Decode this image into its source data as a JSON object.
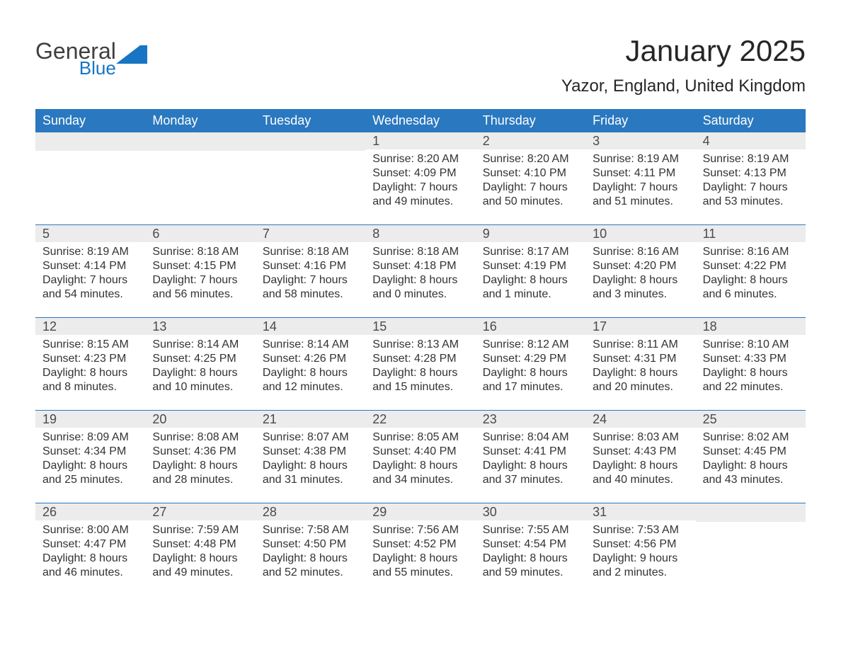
{
  "logo": {
    "word1": "General",
    "word2": "Blue"
  },
  "title": "January 2025",
  "location": "Yazor, England, United Kingdom",
  "colors": {
    "header_bg": "#2a78bf",
    "header_text": "#ffffff",
    "daynum_bg": "#ececec",
    "text": "#333333",
    "logo_gray": "#3f3f3f",
    "logo_blue": "#1775c4",
    "page_bg": "#ffffff"
  },
  "day_names": [
    "Sunday",
    "Monday",
    "Tuesday",
    "Wednesday",
    "Thursday",
    "Friday",
    "Saturday"
  ],
  "weeks": [
    [
      {
        "n": "",
        "sr": "",
        "ss": "",
        "dl": ""
      },
      {
        "n": "",
        "sr": "",
        "ss": "",
        "dl": ""
      },
      {
        "n": "",
        "sr": "",
        "ss": "",
        "dl": ""
      },
      {
        "n": "1",
        "sr": "Sunrise: 8:20 AM",
        "ss": "Sunset: 4:09 PM",
        "dl": "Daylight: 7 hours and 49 minutes."
      },
      {
        "n": "2",
        "sr": "Sunrise: 8:20 AM",
        "ss": "Sunset: 4:10 PM",
        "dl": "Daylight: 7 hours and 50 minutes."
      },
      {
        "n": "3",
        "sr": "Sunrise: 8:19 AM",
        "ss": "Sunset: 4:11 PM",
        "dl": "Daylight: 7 hours and 51 minutes."
      },
      {
        "n": "4",
        "sr": "Sunrise: 8:19 AM",
        "ss": "Sunset: 4:13 PM",
        "dl": "Daylight: 7 hours and 53 minutes."
      }
    ],
    [
      {
        "n": "5",
        "sr": "Sunrise: 8:19 AM",
        "ss": "Sunset: 4:14 PM",
        "dl": "Daylight: 7 hours and 54 minutes."
      },
      {
        "n": "6",
        "sr": "Sunrise: 8:18 AM",
        "ss": "Sunset: 4:15 PM",
        "dl": "Daylight: 7 hours and 56 minutes."
      },
      {
        "n": "7",
        "sr": "Sunrise: 8:18 AM",
        "ss": "Sunset: 4:16 PM",
        "dl": "Daylight: 7 hours and 58 minutes."
      },
      {
        "n": "8",
        "sr": "Sunrise: 8:18 AM",
        "ss": "Sunset: 4:18 PM",
        "dl": "Daylight: 8 hours and 0 minutes."
      },
      {
        "n": "9",
        "sr": "Sunrise: 8:17 AM",
        "ss": "Sunset: 4:19 PM",
        "dl": "Daylight: 8 hours and 1 minute."
      },
      {
        "n": "10",
        "sr": "Sunrise: 8:16 AM",
        "ss": "Sunset: 4:20 PM",
        "dl": "Daylight: 8 hours and 3 minutes."
      },
      {
        "n": "11",
        "sr": "Sunrise: 8:16 AM",
        "ss": "Sunset: 4:22 PM",
        "dl": "Daylight: 8 hours and 6 minutes."
      }
    ],
    [
      {
        "n": "12",
        "sr": "Sunrise: 8:15 AM",
        "ss": "Sunset: 4:23 PM",
        "dl": "Daylight: 8 hours and 8 minutes."
      },
      {
        "n": "13",
        "sr": "Sunrise: 8:14 AM",
        "ss": "Sunset: 4:25 PM",
        "dl": "Daylight: 8 hours and 10 minutes."
      },
      {
        "n": "14",
        "sr": "Sunrise: 8:14 AM",
        "ss": "Sunset: 4:26 PM",
        "dl": "Daylight: 8 hours and 12 minutes."
      },
      {
        "n": "15",
        "sr": "Sunrise: 8:13 AM",
        "ss": "Sunset: 4:28 PM",
        "dl": "Daylight: 8 hours and 15 minutes."
      },
      {
        "n": "16",
        "sr": "Sunrise: 8:12 AM",
        "ss": "Sunset: 4:29 PM",
        "dl": "Daylight: 8 hours and 17 minutes."
      },
      {
        "n": "17",
        "sr": "Sunrise: 8:11 AM",
        "ss": "Sunset: 4:31 PM",
        "dl": "Daylight: 8 hours and 20 minutes."
      },
      {
        "n": "18",
        "sr": "Sunrise: 8:10 AM",
        "ss": "Sunset: 4:33 PM",
        "dl": "Daylight: 8 hours and 22 minutes."
      }
    ],
    [
      {
        "n": "19",
        "sr": "Sunrise: 8:09 AM",
        "ss": "Sunset: 4:34 PM",
        "dl": "Daylight: 8 hours and 25 minutes."
      },
      {
        "n": "20",
        "sr": "Sunrise: 8:08 AM",
        "ss": "Sunset: 4:36 PM",
        "dl": "Daylight: 8 hours and 28 minutes."
      },
      {
        "n": "21",
        "sr": "Sunrise: 8:07 AM",
        "ss": "Sunset: 4:38 PM",
        "dl": "Daylight: 8 hours and 31 minutes."
      },
      {
        "n": "22",
        "sr": "Sunrise: 8:05 AM",
        "ss": "Sunset: 4:40 PM",
        "dl": "Daylight: 8 hours and 34 minutes."
      },
      {
        "n": "23",
        "sr": "Sunrise: 8:04 AM",
        "ss": "Sunset: 4:41 PM",
        "dl": "Daylight: 8 hours and 37 minutes."
      },
      {
        "n": "24",
        "sr": "Sunrise: 8:03 AM",
        "ss": "Sunset: 4:43 PM",
        "dl": "Daylight: 8 hours and 40 minutes."
      },
      {
        "n": "25",
        "sr": "Sunrise: 8:02 AM",
        "ss": "Sunset: 4:45 PM",
        "dl": "Daylight: 8 hours and 43 minutes."
      }
    ],
    [
      {
        "n": "26",
        "sr": "Sunrise: 8:00 AM",
        "ss": "Sunset: 4:47 PM",
        "dl": "Daylight: 8 hours and 46 minutes."
      },
      {
        "n": "27",
        "sr": "Sunrise: 7:59 AM",
        "ss": "Sunset: 4:48 PM",
        "dl": "Daylight: 8 hours and 49 minutes."
      },
      {
        "n": "28",
        "sr": "Sunrise: 7:58 AM",
        "ss": "Sunset: 4:50 PM",
        "dl": "Daylight: 8 hours and 52 minutes."
      },
      {
        "n": "29",
        "sr": "Sunrise: 7:56 AM",
        "ss": "Sunset: 4:52 PM",
        "dl": "Daylight: 8 hours and 55 minutes."
      },
      {
        "n": "30",
        "sr": "Sunrise: 7:55 AM",
        "ss": "Sunset: 4:54 PM",
        "dl": "Daylight: 8 hours and 59 minutes."
      },
      {
        "n": "31",
        "sr": "Sunrise: 7:53 AM",
        "ss": "Sunset: 4:56 PM",
        "dl": "Daylight: 9 hours and 2 minutes."
      },
      {
        "n": "",
        "sr": "",
        "ss": "",
        "dl": ""
      }
    ]
  ]
}
